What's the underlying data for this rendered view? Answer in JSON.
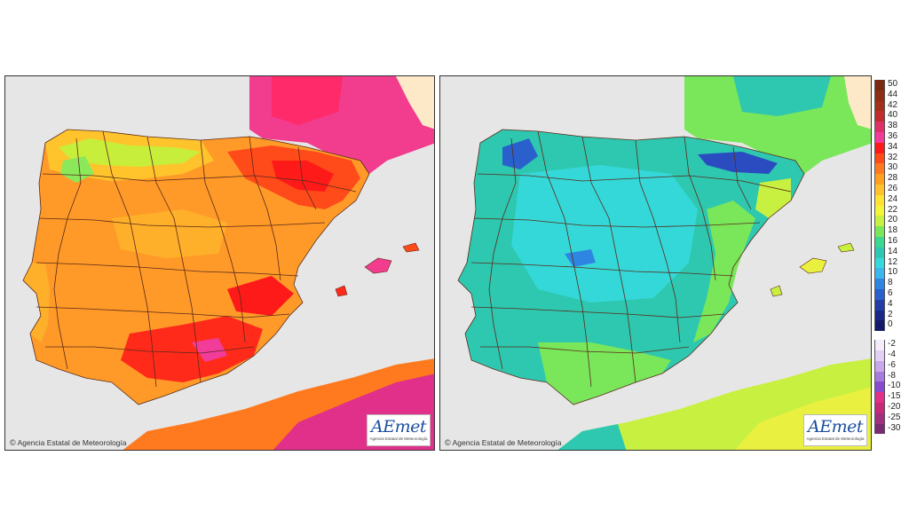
{
  "panels": [
    {
      "credit": "Agencia Estatal de Meteorología",
      "logo": {
        "text_main": "AEmet",
        "text_sub": "Agencia Estatal de Meteorología"
      }
    },
    {
      "credit": "Agencia Estatal de Meteorología",
      "logo": {
        "text_main": "AEmet",
        "text_sub": "Agencia Estatal de Meteorología"
      }
    }
  ],
  "legend": {
    "upper": [
      {
        "label": "50",
        "color": "#7a2a10"
      },
      {
        "label": "44",
        "color": "#8e2e14"
      },
      {
        "label": "42",
        "color": "#a33018"
      },
      {
        "label": "40",
        "color": "#c22c2e"
      },
      {
        "label": "38",
        "color": "#e0306a"
      },
      {
        "label": "36",
        "color": "#f23c9a"
      },
      {
        "label": "34",
        "color": "#ff1a1a"
      },
      {
        "label": "32",
        "color": "#ff4a1a"
      },
      {
        "label": "30",
        "color": "#ff7a1e"
      },
      {
        "label": "28",
        "color": "#ffa020"
      },
      {
        "label": "26",
        "color": "#ffc22a"
      },
      {
        "label": "24",
        "color": "#ffe234"
      },
      {
        "label": "22",
        "color": "#f4f438"
      },
      {
        "label": "20",
        "color": "#c8f040"
      },
      {
        "label": "18",
        "color": "#7ae65a"
      },
      {
        "label": "16",
        "color": "#3cd890"
      },
      {
        "label": "14",
        "color": "#2ec8b4"
      },
      {
        "label": "12",
        "color": "#34dada"
      },
      {
        "label": "10",
        "color": "#3ab8ee"
      },
      {
        "label": "8",
        "color": "#2e86e2"
      },
      {
        "label": "6",
        "color": "#2a60cc"
      },
      {
        "label": "4",
        "color": "#223ca8"
      },
      {
        "label": "2",
        "color": "#1a2888"
      },
      {
        "label": "0",
        "color": "#14186a"
      }
    ],
    "lower": [
      {
        "label": "-2",
        "color": "#f4ecfa"
      },
      {
        "label": "-4",
        "color": "#e2d0f4"
      },
      {
        "label": "-6",
        "color": "#c8a8ea"
      },
      {
        "label": "-8",
        "color": "#a87ade"
      },
      {
        "label": "-10",
        "color": "#8a4ad0"
      },
      {
        "label": "-15",
        "color": "#e0308a"
      },
      {
        "label": "-20",
        "color": "#c82a7a"
      },
      {
        "label": "-25",
        "color": "#a0307e"
      },
      {
        "label": "-30",
        "color": "#7a2a70"
      }
    ]
  },
  "colors": {
    "sea": "#e6e6e6",
    "foreign_land": "#fde9c8",
    "left_base": "#ff9a28",
    "left_hot": "#ff2a1a",
    "left_mid": "#ffc42c",
    "left_cool": "#c8ee3c",
    "left_france": "#f23c8e",
    "right_base": "#2ec8b0",
    "right_cool": "#34d8d8",
    "right_cold": "#2a4cc0",
    "right_warm": "#7ae65a",
    "right_yellow": "#eaf040",
    "borders": "#5a2a1a"
  }
}
